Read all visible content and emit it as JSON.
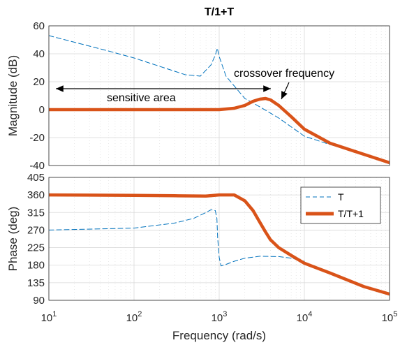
{
  "title": "T/1+T",
  "xlabel": "Frequency  (rad/s)",
  "colors": {
    "T": "#0072BD",
    "closed": "#D95319",
    "grid": "#d9d9d9"
  },
  "annotations": {
    "sensitive": "sensitive area",
    "crossover": "crossover frequency"
  },
  "chart_data": [
    {
      "type": "line",
      "panel": "magnitude",
      "ylabel": "Magnitude (dB)",
      "xscale": "log",
      "xlim": [
        10,
        100000
      ],
      "ylim": [
        -40,
        60
      ],
      "yticks": [
        "60",
        "40",
        "20",
        "0",
        "-20",
        "-40"
      ],
      "grid": true,
      "series": [
        {
          "name": "T",
          "style": "dashed",
          "x": [
            10,
            50,
            100,
            200,
            400,
            600,
            800,
            900,
            950,
            1000,
            1200,
            1500,
            2000,
            3000,
            5000,
            10000,
            20000,
            50000,
            100000
          ],
          "y": [
            53,
            42,
            37,
            31,
            25,
            24,
            32,
            39,
            44,
            38,
            24,
            17,
            8,
            2,
            -6,
            -19,
            -25,
            -32,
            -38
          ]
        },
        {
          "name": "T/T+1",
          "style": "solid",
          "x": [
            10,
            100,
            300,
            1000,
            1500,
            2000,
            2500,
            3000,
            3500,
            4000,
            5000,
            7000,
            10000,
            20000,
            50000,
            100000
          ],
          "y": [
            0,
            0,
            0,
            0,
            1,
            3,
            6,
            7.5,
            8,
            7,
            3,
            -5,
            -14,
            -24,
            -32,
            -38
          ]
        }
      ]
    },
    {
      "type": "line",
      "panel": "phase",
      "ylabel": "Phase (deg)",
      "xscale": "log",
      "xlim": [
        10,
        100000
      ],
      "ylim": [
        90,
        405
      ],
      "yticks": [
        "405",
        "360",
        "315",
        "270",
        "225",
        "180",
        "135",
        "90"
      ],
      "xticks": [
        {
          "base": "10",
          "exp": "1"
        },
        {
          "base": "10",
          "exp": "2"
        },
        {
          "base": "10",
          "exp": "3"
        },
        {
          "base": "10",
          "exp": "4"
        },
        {
          "base": "10",
          "exp": "5"
        }
      ],
      "grid": true,
      "legend": "top-right",
      "series": [
        {
          "name": "T",
          "style": "dashed",
          "x": [
            10,
            100,
            300,
            500,
            700,
            800,
            900,
            940,
            960,
            1000,
            1050,
            1200,
            1500,
            2000,
            3000,
            5000,
            7000,
            10000
          ],
          "y": [
            270,
            275,
            288,
            300,
            315,
            322,
            320,
            300,
            250,
            200,
            178,
            182,
            190,
            198,
            203,
            202,
            198,
            190
          ]
        },
        {
          "name": "T/T+1",
          "style": "solid",
          "x": [
            10,
            100,
            300,
            700,
            1000,
            1500,
            2000,
            2500,
            3000,
            3500,
            4000,
            5000,
            7000,
            10000,
            20000,
            50000,
            100000
          ],
          "y": [
            360,
            359,
            358,
            357,
            360,
            360,
            345,
            320,
            290,
            265,
            245,
            225,
            205,
            185,
            160,
            125,
            106
          ]
        }
      ]
    }
  ]
}
